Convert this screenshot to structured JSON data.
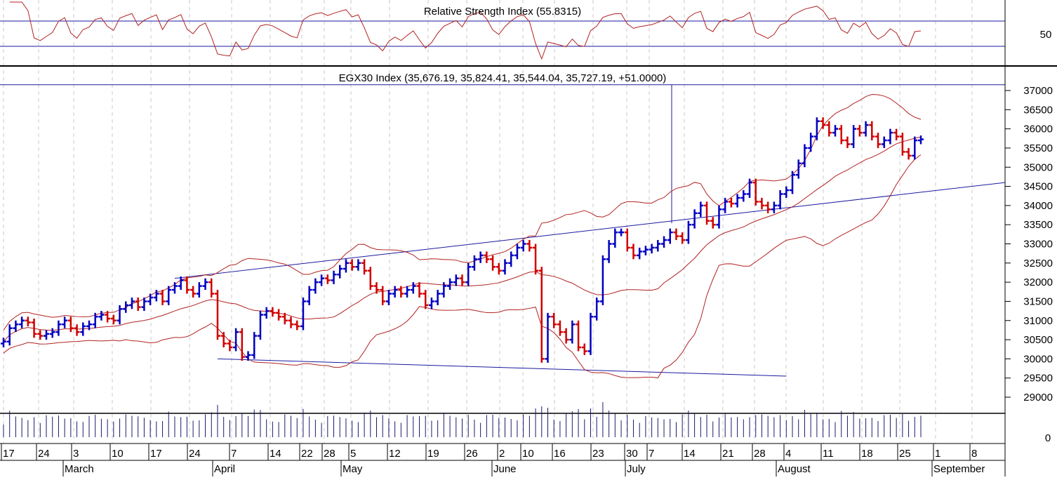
{
  "chart_data": {
    "type": "bar",
    "subtype": "ohlc",
    "rsi_panel": {
      "title": "Relative Strength Index (55.8315)",
      "tick_labels": [
        "50"
      ],
      "levels": [
        30,
        70
      ],
      "color": "#b22222"
    },
    "price_panel": {
      "title": "EGX30 Index (35,676.19, 35,824.41, 35,544.04, 35,727.19, +51.0000)",
      "ylim": [
        28700,
        37300
      ],
      "y_ticks": [
        37000,
        36500,
        36000,
        35500,
        35000,
        34500,
        34000,
        33500,
        33000,
        32500,
        32000,
        31500,
        31000,
        30500,
        30000,
        29500,
        29000
      ],
      "up_color": "#0000c0",
      "down_color": "#d00000",
      "band_color": "#b22222",
      "line_color": "#1a1aa0",
      "closes": [
        30450,
        30800,
        30900,
        31000,
        30950,
        30650,
        30600,
        30650,
        30700,
        30900,
        31000,
        30800,
        30700,
        30850,
        30900,
        31100,
        31150,
        31050,
        31000,
        31300,
        31400,
        31500,
        31350,
        31500,
        31600,
        31700,
        31500,
        31800,
        31900,
        32050,
        31800,
        31700,
        31900,
        32000,
        31700,
        30600,
        30400,
        30300,
        30700,
        30050,
        30100,
        30600,
        31150,
        31250,
        31200,
        31100,
        31000,
        30900,
        30850,
        31500,
        31800,
        32000,
        32100,
        32050,
        32200,
        32350,
        32500,
        32400,
        32500,
        32300,
        31900,
        31800,
        31500,
        31700,
        31800,
        31700,
        31800,
        31900,
        31700,
        31400,
        31500,
        31700,
        31900,
        32000,
        32100,
        32000,
        32400,
        32600,
        32700,
        32600,
        32400,
        32300,
        32500,
        32700,
        32900,
        33000,
        32900,
        32300,
        30000,
        31100,
        30900,
        30700,
        30500,
        30900,
        30300,
        30200,
        31100,
        31500,
        32600,
        33000,
        33300,
        33300,
        32900,
        32700,
        32800,
        32850,
        32900,
        33000,
        33100,
        33300,
        33200,
        33100,
        33500,
        33800,
        34000,
        33600,
        33500,
        33900,
        34100,
        34050,
        34200,
        34300,
        34600,
        34100,
        34000,
        33900,
        34000,
        34300,
        34400,
        34800,
        35100,
        35500,
        35800,
        36200,
        36100,
        35900,
        36000,
        35700,
        35600,
        36000,
        35900,
        36100,
        35800,
        35600,
        35700,
        35900,
        35800,
        35400,
        35300,
        35700,
        35727
      ],
      "last_bar": {
        "open": 35676.19,
        "high": 35824.41,
        "low": 35544.04,
        "close": 35727.19,
        "change": 51.0
      },
      "horizontal_line": 37150,
      "trendlines": [
        {
          "from_bar": 28,
          "from_price": 32100,
          "to_bar": 155,
          "to_price": 34600
        },
        {
          "from_bar": 35,
          "from_price": 30000,
          "to_bar": 128,
          "to_price": 29550
        }
      ]
    },
    "volume_panel": {
      "tick_labels": [
        "0"
      ]
    },
    "x_axis": {
      "day_labels": [
        "17",
        "24",
        "3",
        "10",
        "17",
        "24",
        "7",
        "14",
        "22",
        "28",
        "5",
        "12",
        "19",
        "26",
        "2",
        "10",
        "16",
        "23",
        "30",
        "7",
        "14",
        "21",
        "28",
        "4",
        "11",
        "18",
        "25",
        "1",
        "8"
      ],
      "month_labels": [
        "March",
        "April",
        "May",
        "June",
        "July",
        "August",
        "September"
      ]
    }
  }
}
